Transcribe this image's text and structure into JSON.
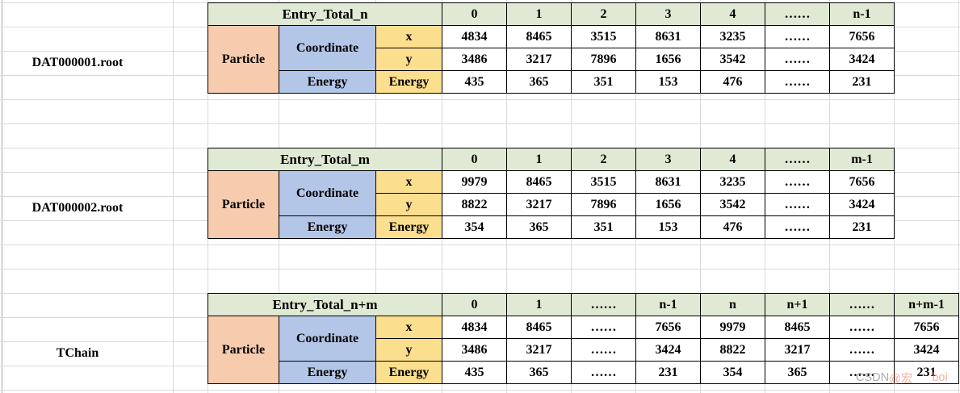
{
  "colors": {
    "header_green": "#dfe9d3",
    "particle_orange": "#f7cbad",
    "group_blue": "#b4c6e7",
    "label_yellow": "#fcdf8e",
    "cell_white": "#ffffff",
    "border_black": "#000000",
    "gridline_gray": "#d9d9d9"
  },
  "tables": [
    {
      "file_label": "DAT000001.root",
      "header": {
        "title": "Entry_Total_n",
        "columns": [
          "0",
          "1",
          "2",
          "3",
          "4",
          "……",
          "n-1"
        ]
      },
      "groups": {
        "particle": "Particle",
        "coordinate": "Coordinate",
        "energy": "Energy"
      },
      "rows": [
        {
          "label": "x",
          "values": [
            "4834",
            "8465",
            "3515",
            "8631",
            "3235",
            "……",
            "7656"
          ]
        },
        {
          "label": "y",
          "values": [
            "3486",
            "3217",
            "7896",
            "1656",
            "3542",
            "……",
            "3424"
          ]
        },
        {
          "label": "Energy",
          "values": [
            "435",
            "365",
            "351",
            "153",
            "476",
            "……",
            "231"
          ]
        }
      ]
    },
    {
      "file_label": "DAT000002.root",
      "header": {
        "title": "Entry_Total_m",
        "columns": [
          "0",
          "1",
          "2",
          "3",
          "4",
          "……",
          "m-1"
        ]
      },
      "groups": {
        "particle": "Particle",
        "coordinate": "Coordinate",
        "energy": "Energy"
      },
      "rows": [
        {
          "label": "x",
          "values": [
            "9979",
            "8465",
            "3515",
            "8631",
            "3235",
            "……",
            "7656"
          ]
        },
        {
          "label": "y",
          "values": [
            "8822",
            "3217",
            "7896",
            "1656",
            "3542",
            "……",
            "3424"
          ]
        },
        {
          "label": "Energy",
          "values": [
            "354",
            "365",
            "351",
            "153",
            "476",
            "……",
            "231"
          ]
        }
      ]
    },
    {
      "file_label": "TChain",
      "header": {
        "title": "Entry_Total_n+m",
        "columns": [
          "0",
          "1",
          "……",
          "n-1",
          "n",
          "n+1",
          "……",
          "n+m-1"
        ]
      },
      "groups": {
        "particle": "Particle",
        "coordinate": "Coordinate",
        "energy": "Energy"
      },
      "rows": [
        {
          "label": "x",
          "values": [
            "4834",
            "8465",
            "……",
            "7656",
            "9979",
            "8465",
            "……",
            "7656"
          ]
        },
        {
          "label": "y",
          "values": [
            "3486",
            "3217",
            "……",
            "3424",
            "8822",
            "3217",
            "……",
            "3424"
          ]
        },
        {
          "label": "Energy",
          "values": [
            "435",
            "365",
            "……",
            "231",
            "354",
            "365",
            "……",
            "231"
          ]
        }
      ]
    }
  ],
  "watermark": {
    "prefix": "CSDN ",
    "handle_start": "@宏",
    "handle_end": "boi"
  }
}
